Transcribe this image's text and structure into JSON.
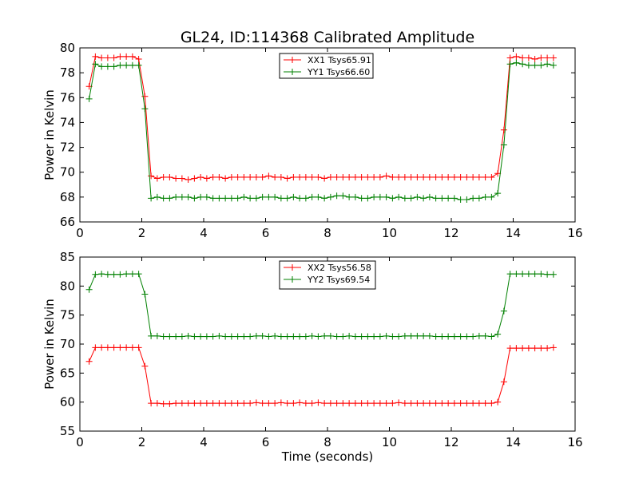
{
  "figure": {
    "title": "GL24, ID:114368 Calibrated Amplitude"
  },
  "chart_data": [
    {
      "type": "line",
      "title": "GL24, ID:114368 Calibrated Amplitude",
      "xlabel": "",
      "ylabel": "Power in Kelvin",
      "xlim": [
        0,
        16
      ],
      "ylim": [
        66,
        80
      ],
      "xticks": [
        0,
        2,
        4,
        6,
        8,
        10,
        12,
        14,
        16
      ],
      "yticks": [
        66,
        68,
        70,
        72,
        74,
        76,
        78,
        80
      ],
      "grid": false,
      "legend_position": "top-center",
      "x": [
        0.3,
        0.5,
        0.7,
        0.9,
        1.1,
        1.3,
        1.5,
        1.7,
        1.9,
        2.1,
        2.3,
        2.5,
        2.7,
        2.9,
        3.1,
        3.3,
        3.5,
        3.7,
        3.9,
        4.1,
        4.3,
        4.5,
        4.7,
        4.9,
        5.1,
        5.3,
        5.5,
        5.7,
        5.9,
        6.1,
        6.3,
        6.5,
        6.7,
        6.9,
        7.1,
        7.3,
        7.5,
        7.7,
        7.9,
        8.1,
        8.3,
        8.5,
        8.7,
        8.9,
        9.1,
        9.3,
        9.5,
        9.7,
        9.9,
        10.1,
        10.3,
        10.5,
        10.7,
        10.9,
        11.1,
        11.3,
        11.5,
        11.7,
        11.9,
        12.1,
        12.3,
        12.5,
        12.7,
        12.9,
        13.1,
        13.3,
        13.5,
        13.7,
        13.9,
        14.1,
        14.3,
        14.5,
        14.7,
        14.9,
        15.1,
        15.3
      ],
      "series": [
        {
          "name": "XX1 Tsys65.91",
          "color": "#ff0000",
          "values": [
            76.9,
            79.3,
            79.2,
            79.2,
            79.2,
            79.3,
            79.3,
            79.3,
            79.1,
            76.1,
            69.7,
            69.5,
            69.6,
            69.6,
            69.5,
            69.5,
            69.4,
            69.5,
            69.6,
            69.5,
            69.6,
            69.6,
            69.5,
            69.6,
            69.6,
            69.6,
            69.6,
            69.6,
            69.6,
            69.7,
            69.6,
            69.6,
            69.5,
            69.6,
            69.6,
            69.6,
            69.6,
            69.6,
            69.5,
            69.6,
            69.6,
            69.6,
            69.6,
            69.6,
            69.6,
            69.6,
            69.6,
            69.6,
            69.7,
            69.6,
            69.6,
            69.6,
            69.6,
            69.6,
            69.6,
            69.6,
            69.6,
            69.6,
            69.6,
            69.6,
            69.6,
            69.6,
            69.6,
            69.6,
            69.6,
            69.6,
            69.9,
            73.4,
            79.2,
            79.3,
            79.2,
            79.2,
            79.1,
            79.2,
            79.2,
            79.2
          ]
        },
        {
          "name": "YY1 Tsys66.60",
          "color": "#008000",
          "values": [
            75.9,
            78.7,
            78.5,
            78.5,
            78.5,
            78.6,
            78.6,
            78.6,
            78.6,
            75.1,
            67.9,
            68.0,
            67.9,
            67.9,
            68.0,
            68.0,
            68.0,
            67.9,
            68.0,
            68.0,
            67.9,
            67.9,
            67.9,
            67.9,
            67.9,
            68.0,
            67.9,
            67.9,
            68.0,
            68.0,
            68.0,
            67.9,
            67.9,
            68.0,
            67.9,
            67.9,
            68.0,
            68.0,
            67.9,
            68.0,
            68.1,
            68.1,
            68.0,
            68.0,
            67.9,
            67.9,
            68.0,
            68.0,
            68.0,
            67.9,
            68.0,
            67.9,
            67.9,
            68.0,
            67.9,
            68.0,
            67.9,
            67.9,
            67.9,
            67.9,
            67.8,
            67.8,
            67.9,
            67.9,
            68.0,
            68.0,
            68.3,
            72.2,
            78.7,
            78.8,
            78.7,
            78.6,
            78.6,
            78.6,
            78.7,
            78.6
          ]
        }
      ]
    },
    {
      "type": "line",
      "title": "",
      "xlabel": "Time (seconds)",
      "ylabel": "Power in Kelvin",
      "xlim": [
        0,
        16
      ],
      "ylim": [
        55,
        85
      ],
      "xticks": [
        0,
        2,
        4,
        6,
        8,
        10,
        12,
        14,
        16
      ],
      "yticks": [
        55,
        60,
        65,
        70,
        75,
        80,
        85
      ],
      "grid": false,
      "legend_position": "top-center",
      "x": [
        0.3,
        0.5,
        0.7,
        0.9,
        1.1,
        1.3,
        1.5,
        1.7,
        1.9,
        2.1,
        2.3,
        2.5,
        2.7,
        2.9,
        3.1,
        3.3,
        3.5,
        3.7,
        3.9,
        4.1,
        4.3,
        4.5,
        4.7,
        4.9,
        5.1,
        5.3,
        5.5,
        5.7,
        5.9,
        6.1,
        6.3,
        6.5,
        6.7,
        6.9,
        7.1,
        7.3,
        7.5,
        7.7,
        7.9,
        8.1,
        8.3,
        8.5,
        8.7,
        8.9,
        9.1,
        9.3,
        9.5,
        9.7,
        9.9,
        10.1,
        10.3,
        10.5,
        10.7,
        10.9,
        11.1,
        11.3,
        11.5,
        11.7,
        11.9,
        12.1,
        12.3,
        12.5,
        12.7,
        12.9,
        13.1,
        13.3,
        13.5,
        13.7,
        13.9,
        14.1,
        14.3,
        14.5,
        14.7,
        14.9,
        15.1,
        15.3
      ],
      "series": [
        {
          "name": "XX2 Tsys56.58",
          "color": "#ff0000",
          "values": [
            67.0,
            69.4,
            69.4,
            69.4,
            69.4,
            69.4,
            69.4,
            69.4,
            69.4,
            66.2,
            59.8,
            59.8,
            59.7,
            59.7,
            59.8,
            59.8,
            59.8,
            59.8,
            59.8,
            59.8,
            59.8,
            59.8,
            59.8,
            59.8,
            59.8,
            59.8,
            59.8,
            59.9,
            59.8,
            59.8,
            59.8,
            59.9,
            59.8,
            59.8,
            59.9,
            59.8,
            59.8,
            59.9,
            59.8,
            59.8,
            59.8,
            59.8,
            59.8,
            59.8,
            59.8,
            59.8,
            59.8,
            59.8,
            59.8,
            59.8,
            59.9,
            59.8,
            59.8,
            59.8,
            59.8,
            59.8,
            59.8,
            59.8,
            59.8,
            59.8,
            59.8,
            59.8,
            59.8,
            59.8,
            59.8,
            59.8,
            60.0,
            63.5,
            69.3,
            69.3,
            69.3,
            69.3,
            69.3,
            69.3,
            69.3,
            69.4
          ]
        },
        {
          "name": "YY2 Tsys69.54",
          "color": "#008000",
          "values": [
            79.4,
            82.0,
            82.1,
            82.0,
            82.0,
            82.0,
            82.1,
            82.1,
            82.1,
            78.6,
            71.4,
            71.4,
            71.3,
            71.3,
            71.3,
            71.3,
            71.4,
            71.3,
            71.3,
            71.3,
            71.3,
            71.4,
            71.3,
            71.3,
            71.3,
            71.3,
            71.3,
            71.4,
            71.4,
            71.3,
            71.4,
            71.3,
            71.3,
            71.3,
            71.3,
            71.3,
            71.4,
            71.3,
            71.4,
            71.4,
            71.3,
            71.3,
            71.4,
            71.3,
            71.3,
            71.3,
            71.3,
            71.3,
            71.4,
            71.3,
            71.3,
            71.4,
            71.4,
            71.4,
            71.4,
            71.4,
            71.3,
            71.3,
            71.3,
            71.3,
            71.3,
            71.3,
            71.3,
            71.4,
            71.4,
            71.3,
            71.7,
            75.7,
            82.1,
            82.1,
            82.1,
            82.1,
            82.1,
            82.1,
            82.0,
            82.0
          ]
        }
      ]
    }
  ]
}
